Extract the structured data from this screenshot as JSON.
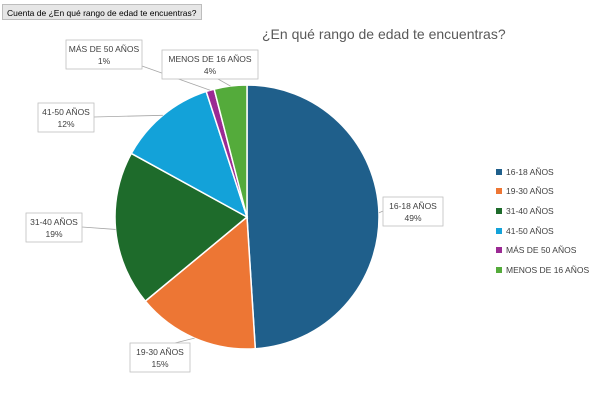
{
  "pivot_field_button": "Cuenta de ¿En qué rango de edad te encuentras?",
  "chart_data": {
    "type": "pie",
    "title": "¿En qué rango de edad te encuentras?",
    "categories": [
      "16-18 AÑOS",
      "19-30 AÑOS",
      "31-40 AÑOS",
      "41-50 AÑOS",
      "MÁS DE 50 AÑOS",
      "MENOS DE 16 AÑOS"
    ],
    "values": [
      49,
      15,
      19,
      12,
      1,
      4
    ],
    "value_labels": [
      "49%",
      "15%",
      "19%",
      "12%",
      "1%",
      "4%"
    ],
    "colors": [
      "#1f5f8b",
      "#ed7634",
      "#1e6b2b",
      "#13a2d9",
      "#9b2a94",
      "#54ab3b"
    ],
    "legend_position": "right",
    "start_angle_deg": 0,
    "direction": "clockwise"
  }
}
